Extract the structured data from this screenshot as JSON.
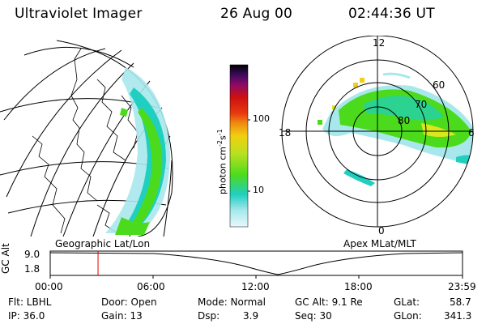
{
  "header": {
    "title": "Ultraviolet Imager",
    "date": "26 Aug 00",
    "time": "02:44:36 UT"
  },
  "left_map": {
    "caption": "Geographic Lat/Lon"
  },
  "colorbar": {
    "unit": "photon cm",
    "unit_exp1": "-2",
    "unit_mid": "s",
    "unit_exp2": "-1",
    "ticks": [
      "100",
      "10"
    ]
  },
  "polar_map": {
    "caption": "Apex MLat/MLT",
    "mlt_labels": {
      "top": "12",
      "left": "18",
      "right": "6",
      "bottom": "0"
    },
    "lat_labels": [
      "60",
      "70",
      "80"
    ]
  },
  "altitude_plot": {
    "ylabel": "GC Alt",
    "ytick_top": "9.0",
    "ytick_bottom": "1.8",
    "xticks": [
      "00:00",
      "06:00",
      "12:00",
      "18:00",
      "23:59"
    ],
    "current_time_fraction": 0.116,
    "marker_color": "#e00000"
  },
  "status": {
    "flt": "Flt: LBHL",
    "ip": "IP: 36.0",
    "door": "Door: Open",
    "gain": "Gain: 13",
    "mode": "Mode: Normal",
    "dsp_label": "Dsp:",
    "dsp_value": "3.9",
    "gcalt": "GC Alt: 9.1 Re",
    "seq": "Seq: 30",
    "glat_label": "GLat:",
    "glat_value": "58.7",
    "glon_label": "GLon:",
    "glon_value": "341.3"
  },
  "colors": {
    "aurora_green": "#4cdb1c",
    "aurora_yellow": "#d8e81c",
    "aurora_cyan": "#20cfc0",
    "low_cyan": "#a8e8ec"
  }
}
